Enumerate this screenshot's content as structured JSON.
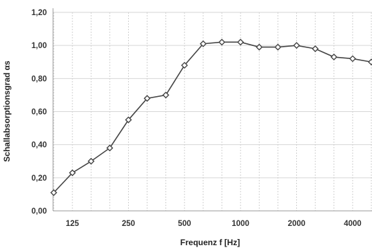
{
  "chart_data": {
    "type": "line",
    "xlabel": "Frequenz f [Hz]",
    "ylabel": "Schallabsorptionsgrad αs",
    "ylim": [
      0,
      1.2
    ],
    "y_ticks": [
      "0,00",
      "0,20",
      "0,40",
      "0,60",
      "0,80",
      "1,00",
      "1,20"
    ],
    "x_tick_labels": [
      "125",
      "250",
      "500",
      "1000",
      "2000",
      "4000"
    ],
    "x_scale": "log (third-octave bands)",
    "grid": "vertical dashed lines at each frequency band, horizontal lines at major y ticks",
    "series": [
      {
        "x": [
          100,
          125,
          160,
          200,
          250,
          315,
          400,
          500,
          630,
          800,
          1000,
          1250,
          1600,
          2000,
          2500,
          3150,
          4000,
          5000
        ],
        "values": [
          0.11,
          0.23,
          0.3,
          0.38,
          0.55,
          0.68,
          0.7,
          0.88,
          1.01,
          1.02,
          1.02,
          0.99,
          0.99,
          1.0,
          0.98,
          0.93,
          0.92,
          0.9
        ],
        "color": "#444444",
        "marker": "diamond"
      }
    ]
  }
}
